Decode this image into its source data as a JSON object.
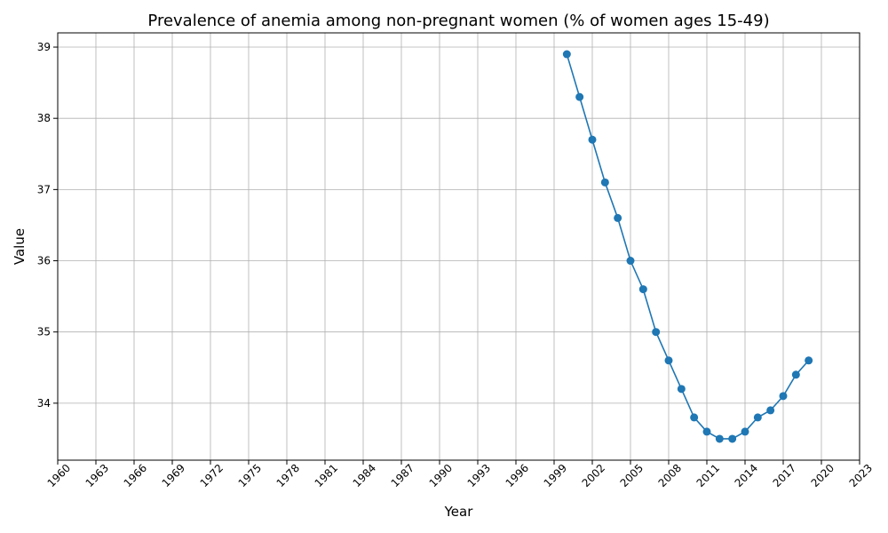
{
  "chart_data": {
    "type": "line",
    "title": "Prevalence of anemia among non-pregnant women (% of women ages 15-49)",
    "xlabel": "Year",
    "ylabel": "Value",
    "xlim": [
      1960,
      2023
    ],
    "ylim": [
      33.2,
      39.2
    ],
    "xticks": [
      1960,
      1963,
      1966,
      1969,
      1972,
      1975,
      1978,
      1981,
      1984,
      1987,
      1990,
      1993,
      1996,
      1999,
      2002,
      2005,
      2008,
      2011,
      2014,
      2017,
      2020,
      2023
    ],
    "yticks": [
      34,
      35,
      36,
      37,
      38,
      39
    ],
    "grid": true,
    "color": "#1f77b4",
    "series": [
      {
        "x": [
          2000,
          2001,
          2002,
          2003,
          2004,
          2005,
          2006,
          2007,
          2008,
          2009,
          2010,
          2011,
          2012,
          2013,
          2014,
          2015,
          2016,
          2017,
          2018,
          2019
        ],
        "values": [
          38.9,
          38.3,
          37.7,
          37.1,
          36.6,
          36.0,
          35.6,
          35.0,
          34.6,
          34.2,
          33.8,
          33.6,
          33.5,
          33.5,
          33.6,
          33.8,
          33.9,
          34.1,
          34.4,
          34.6
        ]
      }
    ]
  }
}
